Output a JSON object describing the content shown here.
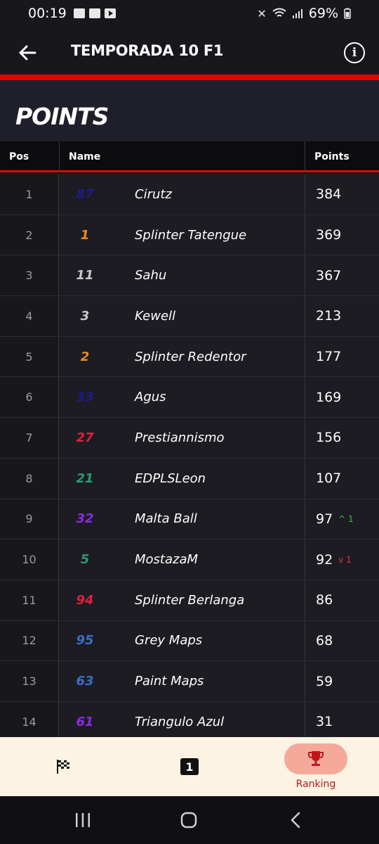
{
  "status": {
    "time": "00:19",
    "battery": "69%"
  },
  "header": {
    "title": "TEMPORADA 10 F1"
  },
  "section": {
    "title": "POINTS"
  },
  "table": {
    "columns": {
      "pos": "Pos",
      "name": "Name",
      "points": "Points"
    },
    "rows": [
      {
        "pos": "1",
        "num": "87",
        "num_color": "#1c1c8c",
        "name": "Cirutz",
        "points": "384"
      },
      {
        "pos": "2",
        "num": "1",
        "num_color": "#f08a1c",
        "name": "Splinter Tatengue",
        "points": "369"
      },
      {
        "pos": "3",
        "num": "11",
        "num_color": "#c8c8cc",
        "name": "Sahu",
        "points": "367"
      },
      {
        "pos": "4",
        "num": "3",
        "num_color": "#c8c8cc",
        "name": "Kewell",
        "points": "213"
      },
      {
        "pos": "5",
        "num": "2",
        "num_color": "#f08a1c",
        "name": "Splinter Redentor",
        "points": "177"
      },
      {
        "pos": "6",
        "num": "33",
        "num_color": "#1c1c8c",
        "name": "Agus",
        "points": "169"
      },
      {
        "pos": "7",
        "num": "27",
        "num_color": "#e0203c",
        "name": "Prestiannismo",
        "points": "156"
      },
      {
        "pos": "8",
        "num": "21",
        "num_color": "#2c9a72",
        "name": "EDPLSLeon",
        "points": "107"
      },
      {
        "pos": "9",
        "num": "32",
        "num_color": "#8a2be2",
        "name": "Malta Ball",
        "points": "97",
        "delta": "^ 1",
        "delta_dir": "up"
      },
      {
        "pos": "10",
        "num": "5",
        "num_color": "#2c9a72",
        "name": "MostazaM",
        "points": "92",
        "delta": "v 1",
        "delta_dir": "down"
      },
      {
        "pos": "11",
        "num": "94",
        "num_color": "#e0203c",
        "name": "Splinter Berlanga",
        "points": "86"
      },
      {
        "pos": "12",
        "num": "95",
        "num_color": "#3a6fcc",
        "name": "Grey Maps",
        "points": "68"
      },
      {
        "pos": "13",
        "num": "63",
        "num_color": "#3a6fcc",
        "name": "Paint Maps",
        "points": "59"
      },
      {
        "pos": "14",
        "num": "61",
        "num_color": "#8a2be2",
        "name": "Triangulo Azul",
        "points": "31"
      }
    ]
  },
  "bottom_nav": {
    "items": [
      {
        "icon": "checkered-flag-icon"
      },
      {
        "icon": "number-one-icon",
        "badge": "1"
      },
      {
        "icon": "trophy-icon",
        "label": "Ranking",
        "active": true
      }
    ]
  },
  "colors": {
    "accent": "#e10600",
    "nav_bg": "#fcf3e3",
    "nav_active": "#f5a99a",
    "ranking_label": "#c0161b"
  }
}
